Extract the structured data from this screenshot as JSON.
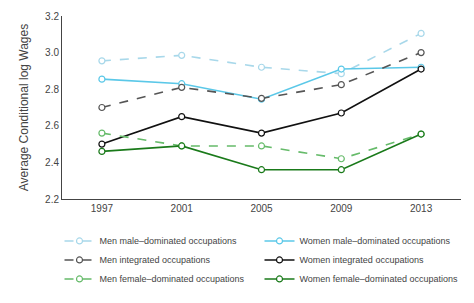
{
  "chart_data": {
    "type": "line",
    "ylabel": "Average Conditional log Wages",
    "x": [
      1997,
      2001,
      2005,
      2009,
      2013
    ],
    "series": [
      {
        "name": "Men male–dominated occupations",
        "color": "#a8d8ea",
        "line_style": "dashed",
        "marker": "circle",
        "values": [
          2.955,
          2.985,
          2.92,
          2.885,
          3.105
        ]
      },
      {
        "name": "Women male–dominated occupations",
        "color": "#5bc8e8",
        "line_style": "solid",
        "marker": "circle",
        "values": [
          2.855,
          2.83,
          2.745,
          2.91,
          2.92
        ]
      },
      {
        "name": "Men integrated occupations",
        "color": "#555555",
        "line_style": "dashed",
        "marker": "circle",
        "values": [
          2.7,
          2.81,
          2.75,
          2.825,
          3.0
        ]
      },
      {
        "name": "Women integrated occupations",
        "color": "#111111",
        "line_style": "solid",
        "marker": "circle",
        "values": [
          2.5,
          2.65,
          2.56,
          2.67,
          2.91
        ]
      },
      {
        "name": "Men female–dominated occupations",
        "color": "#66bb6a",
        "line_style": "dashed",
        "marker": "circle",
        "values": [
          2.56,
          2.49,
          2.49,
          2.42,
          2.555
        ]
      },
      {
        "name": "Women female–dominated occupations",
        "color": "#1a7a1a",
        "line_style": "solid",
        "marker": "circle",
        "values": [
          2.46,
          2.49,
          2.36,
          2.36,
          2.555
        ]
      }
    ],
    "xlim": [
      1995,
      2015
    ],
    "xticks": [
      1997,
      2001,
      2005,
      2009,
      2013
    ],
    "ylim": [
      2.2,
      3.2
    ],
    "yticks": [
      2.2,
      2.4,
      2.6,
      2.8,
      {
        "value": 3.0,
        "label": "3.0"
      },
      3.2
    ],
    "grid": false,
    "legend": "bottom"
  }
}
